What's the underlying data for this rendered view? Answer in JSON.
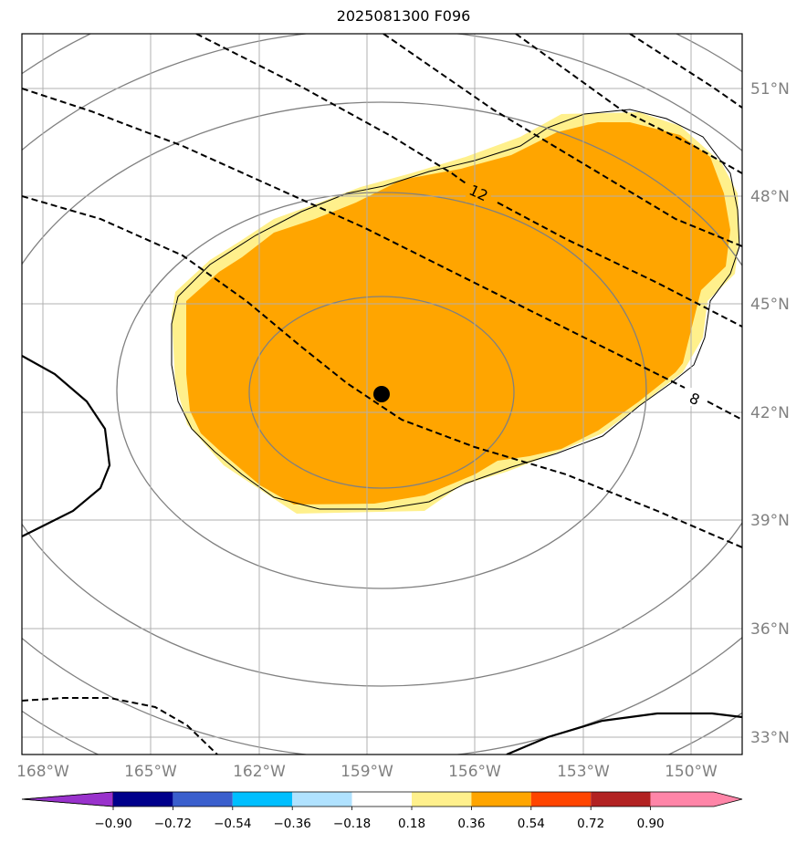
{
  "title": "2025081300 F096",
  "map": {
    "lon_labels": [
      "168°W",
      "165°W",
      "162°W",
      "159°W",
      "156°W",
      "153°W",
      "150°W"
    ],
    "lat_labels": [
      "51°N",
      "48°N",
      "45°N",
      "42°N",
      "39°N",
      "36°N",
      "33°N"
    ],
    "contour_labels": [
      "12",
      "8"
    ],
    "center_marker": "center-point",
    "colors": {
      "grid": "#b0b0b0",
      "gray_contour": "#808080",
      "anomaly_fill": "#ffa500",
      "anomaly_edge": "#ffec8b"
    }
  },
  "colorbar": {
    "ticks": [
      "−0.90",
      "−0.72",
      "−0.54",
      "−0.36",
      "−0.18",
      "0.18",
      "0.36",
      "0.54",
      "0.72",
      "0.90"
    ],
    "colors": [
      "#9932cc",
      "#00008b",
      "#3a5fcd",
      "#00bfff",
      "#b0e2ff",
      "#ffffff",
      "#fff08c",
      "#ffa500",
      "#ff4500",
      "#b22222",
      "#ff85a8"
    ]
  }
}
